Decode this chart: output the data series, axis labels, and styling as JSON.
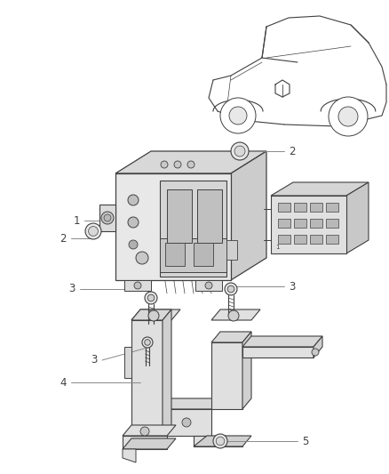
{
  "background_color": "#ffffff",
  "line_color": "#404040",
  "label_color": "#404040",
  "leader_color": "#888888",
  "fig_width": 4.38,
  "fig_height": 5.33,
  "dpi": 100
}
